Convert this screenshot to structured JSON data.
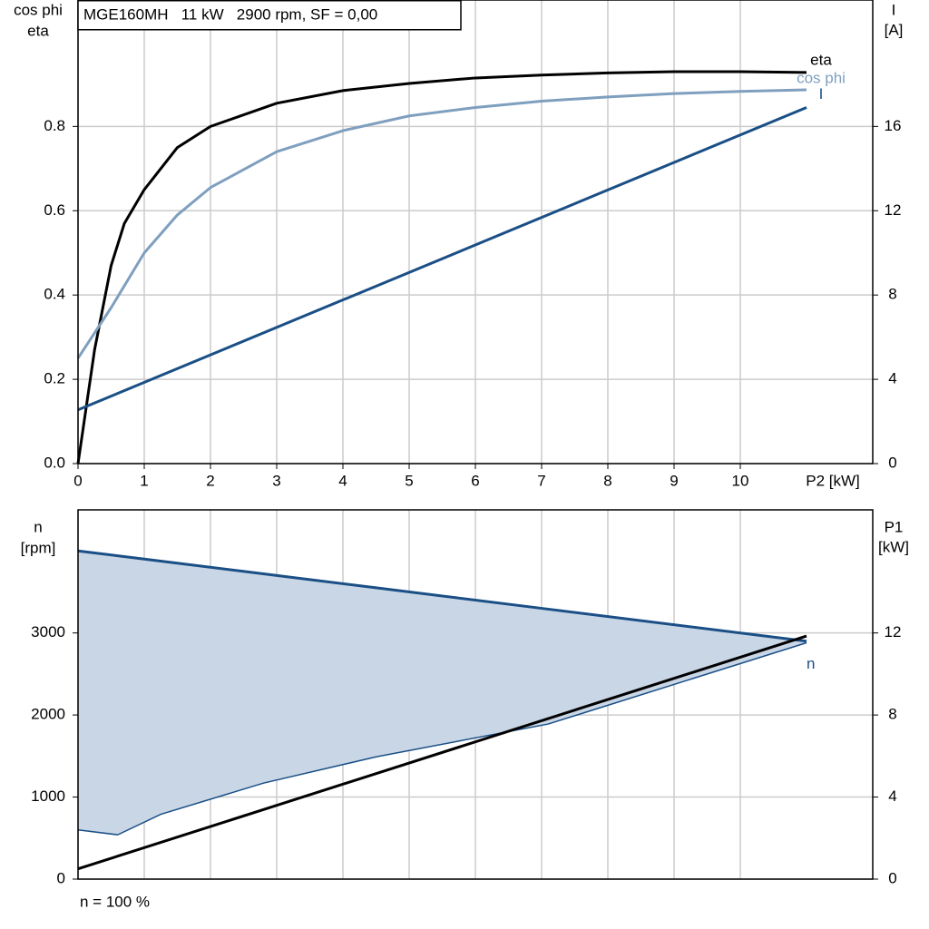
{
  "chart_data": [
    {
      "type": "line",
      "title": "MGE160MH   11 kW   2900 rpm, SF = 0,00",
      "xlabel": "P2 [kW]",
      "ylabel": [
        "cos phi",
        "eta"
      ],
      "y2label": [
        "I",
        "[A]"
      ],
      "xlim": [
        0,
        12
      ],
      "xticks": [
        0,
        1,
        2,
        3,
        4,
        5,
        6,
        7,
        8,
        9,
        10
      ],
      "ylim": [
        0,
        1.1
      ],
      "yticks": [
        {
          "value": 0,
          "label": "0.0"
        },
        {
          "value": 0.2,
          "label": "0.2"
        },
        {
          "value": 0.4,
          "label": "0.4"
        },
        {
          "value": 0.6,
          "label": "0.6"
        },
        {
          "value": 0.8,
          "label": "0.8"
        }
      ],
      "y2lim": [
        0,
        22
      ],
      "y2ticks": [
        0,
        4,
        8,
        12,
        16
      ],
      "grid": true,
      "series": [
        {
          "name": "eta",
          "color": "#000000",
          "x": [
            0,
            0.25,
            0.5,
            0.7,
            1,
            1.5,
            2,
            3,
            4,
            5,
            6,
            7,
            8,
            9,
            10,
            11
          ],
          "values": [
            0,
            0.27,
            0.47,
            0.57,
            0.65,
            0.75,
            0.8,
            0.855,
            0.885,
            0.902,
            0.915,
            0.922,
            0.927,
            0.93,
            0.93,
            0.928
          ]
        },
        {
          "name": "cos phi",
          "color": "#7f9fbf",
          "x": [
            0,
            0.5,
            1,
            1.5,
            2,
            3,
            4,
            5,
            6,
            7,
            8,
            9,
            10,
            11
          ],
          "values": [
            0.25,
            0.37,
            0.5,
            0.59,
            0.655,
            0.74,
            0.79,
            0.825,
            0.845,
            0.86,
            0.87,
            0.878,
            0.883,
            0.887
          ]
        },
        {
          "name": "I",
          "color": "#1a4f86",
          "axis": "y2",
          "x": [
            0,
            11
          ],
          "values": [
            2.55,
            16.9
          ]
        }
      ]
    },
    {
      "type": "band",
      "annotation": "n = 100 %",
      "ylabel": [
        "n",
        "[rpm]"
      ],
      "y2label": [
        "P1",
        "[kW]"
      ],
      "xlim": [
        0,
        12
      ],
      "ylim": [
        0,
        4500
      ],
      "yticks": [
        0,
        1000,
        2000,
        3000
      ],
      "y2lim": [
        0,
        18
      ],
      "y2ticks": [
        0,
        4,
        8,
        12
      ],
      "grid": true,
      "series": [
        {
          "name": "n",
          "color": "#1a4f86",
          "fill": "#c9d6e6",
          "x": [
            0,
            0.6,
            1.25,
            2.8,
            4.5,
            7.1,
            11
          ],
          "upper": [
            4000,
            3940,
            3875,
            3720,
            3550,
            3290,
            2900
          ],
          "lower": [
            600,
            540,
            790,
            1170,
            1490,
            1890,
            2880
          ]
        },
        {
          "color": "#000000",
          "axis": "y2",
          "x": [
            0,
            11
          ],
          "values": [
            0.5,
            11.85
          ]
        }
      ]
    }
  ]
}
